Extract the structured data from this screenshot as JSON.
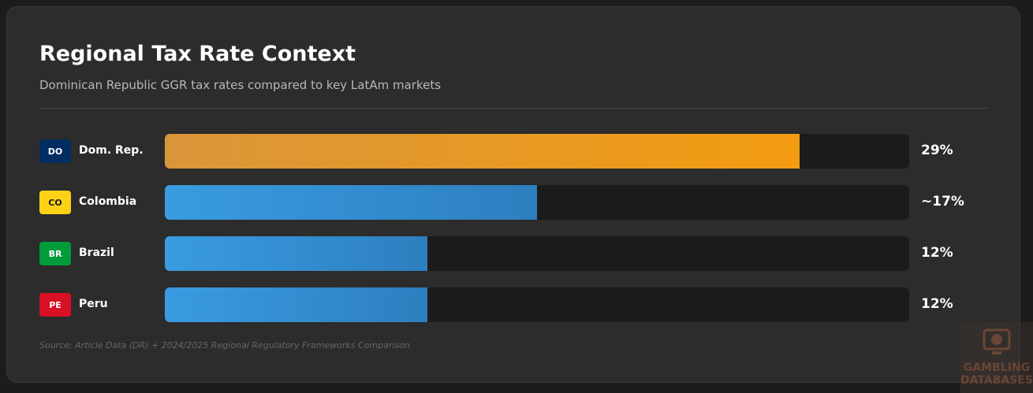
{
  "chart_data": {
    "type": "bar",
    "orientation": "horizontal",
    "title": "Regional Tax Rate Context",
    "subtitle": "Dominican Republic GGR tax rates compared to key LatAm markets",
    "categories": [
      "Dom. Rep.",
      "Colombia",
      "Brazil",
      "Peru"
    ],
    "codes": [
      "DO",
      "CO",
      "BR",
      "PE"
    ],
    "code_colors": [
      "#002d62",
      "#fcd116",
      "#009c3b",
      "#d91023"
    ],
    "code_text_colors": [
      "#ffffff",
      "#1a1a1a",
      "#ffffff",
      "#ffffff"
    ],
    "values": [
      29,
      17,
      12,
      12
    ],
    "value_labels": [
      "29%",
      "~17%",
      "12%",
      "12%"
    ],
    "colors": [
      [
        "#d9963a",
        "#f39c12"
      ],
      [
        "#3a9be0",
        "#2d7fbf"
      ],
      [
        "#3a9be0",
        "#2d7fbf"
      ],
      [
        "#3a9be0",
        "#2d7fbf"
      ]
    ],
    "xlim": [
      0,
      34
    ],
    "source": "Source: Article Data (DR) + 2024/2025 Regional Regulatory Frameworks Comparison",
    "watermark": [
      "GAMBLING",
      "DATABASES"
    ]
  }
}
